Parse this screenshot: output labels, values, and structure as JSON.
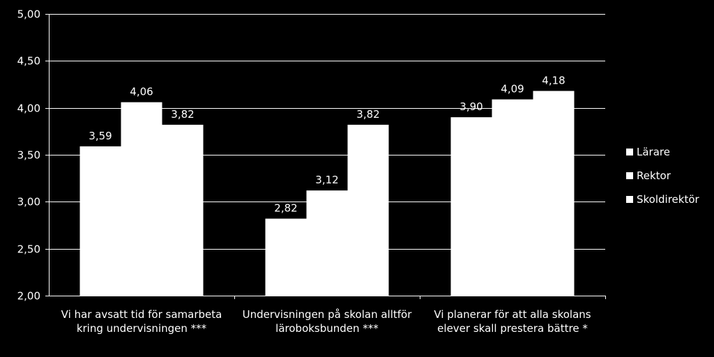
{
  "colors": {
    "background": "#000000",
    "bars": "#ffffff",
    "text": "#ffffff",
    "grid": "#ffffff"
  },
  "chart_data": {
    "type": "bar",
    "categories": [
      [
        "Vi har avsatt tid för samarbeta",
        "kring undervisningen ***"
      ],
      [
        "Undervisningen på skolan alltför",
        "läroboksbunden ***"
      ],
      [
        "Vi planerar för att alla skolans",
        "elever skall prestera bättre *"
      ]
    ],
    "series": [
      {
        "name": "Lärare",
        "values": [
          3.59,
          2.82,
          3.9
        ],
        "labels": [
          "3,59",
          "2,82",
          "3,90"
        ]
      },
      {
        "name": "Rektor",
        "values": [
          4.06,
          3.12,
          4.09
        ],
        "labels": [
          "4,06",
          "3,12",
          "4,09"
        ]
      },
      {
        "name": "Skoldirektör",
        "values": [
          3.82,
          3.82,
          4.18
        ],
        "labels": [
          "3,82",
          "3,82",
          "4,18"
        ]
      }
    ],
    "ylim": [
      2.0,
      5.0
    ],
    "yticks": [
      2.0,
      2.5,
      3.0,
      3.5,
      4.0,
      4.5,
      5.0
    ],
    "ytick_labels": [
      "2,00",
      "2,50",
      "3,00",
      "3,50",
      "4,00",
      "4,50",
      "5,00"
    ],
    "grid": true,
    "legend_position": "right",
    "title": "",
    "xlabel": "",
    "ylabel": ""
  }
}
